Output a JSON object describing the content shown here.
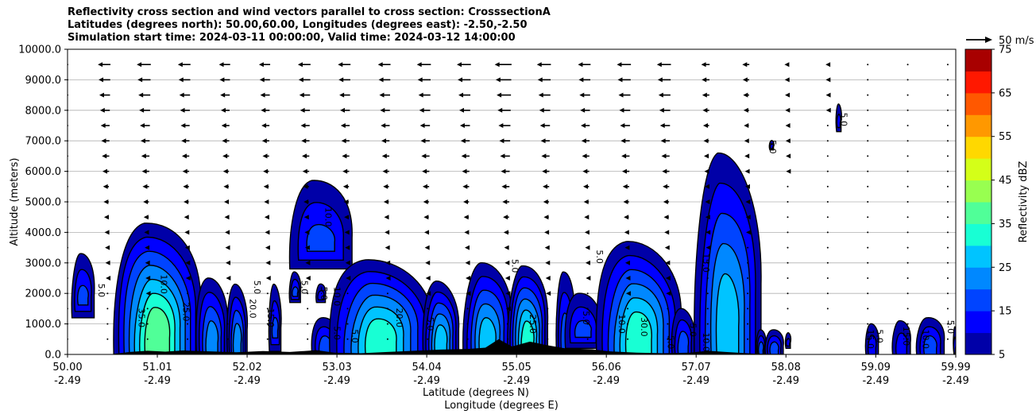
{
  "title": {
    "line1": "Reflectivity cross section and wind vectors parallel to cross section: CrosssectionA",
    "line2": "Latitudes (degrees north): 50.00,60.00, Longitudes (degrees east): -2.50,-2.50",
    "line3": "Simulation start time: 2024-03-11 00:00:00, Valid time: 2024-03-12 14:00:00"
  },
  "chart_data": {
    "type": "heatmap",
    "title": "Reflectivity cross section and wind vectors parallel to cross section: CrosssectionA",
    "xlabel": "Latitude (degrees N)",
    "xlabel2": "Longitude (degrees E)",
    "ylabel": "Altitude (meters)",
    "xlim": [
      50.0,
      59.99
    ],
    "ylim": [
      0,
      10000
    ],
    "x_ticks": [
      {
        "lat": "50.00",
        "lon": "-2.49",
        "value": 50.0
      },
      {
        "lat": "51.01",
        "lon": "-2.49",
        "value": 51.01
      },
      {
        "lat": "52.02",
        "lon": "-2.49",
        "value": 52.02
      },
      {
        "lat": "53.03",
        "lon": "-2.49",
        "value": 53.03
      },
      {
        "lat": "54.04",
        "lon": "-2.49",
        "value": 54.04
      },
      {
        "lat": "55.05",
        "lon": "-2.49",
        "value": 55.05
      },
      {
        "lat": "56.06",
        "lon": "-2.49",
        "value": 56.06
      },
      {
        "lat": "57.07",
        "lon": "-2.49",
        "value": 57.07
      },
      {
        "lat": "58.08",
        "lon": "-2.49",
        "value": 58.08
      },
      {
        "lat": "59.09",
        "lon": "-2.49",
        "value": 59.09
      },
      {
        "lat": "59.99",
        "lon": "-2.49",
        "value": 59.99
      }
    ],
    "y_ticks": [
      {
        "label": "0.0",
        "value": 0
      },
      {
        "label": "1000.0",
        "value": 1000
      },
      {
        "label": "2000.0",
        "value": 2000
      },
      {
        "label": "3000.0",
        "value": 3000
      },
      {
        "label": "4000.0",
        "value": 4000
      },
      {
        "label": "5000.0",
        "value": 5000
      },
      {
        "label": "6000.0",
        "value": 6000
      },
      {
        "label": "7000.0",
        "value": 7000
      },
      {
        "label": "8000.0",
        "value": 8000
      },
      {
        "label": "9000.0",
        "value": 9000
      },
      {
        "label": "10000.0",
        "value": 10000
      }
    ],
    "grid": "horizontal",
    "colorbar": {
      "label": "Reflectivity dBZ",
      "levels": [
        5,
        10,
        15,
        20,
        25,
        30,
        35,
        40,
        45,
        50,
        55,
        60,
        65,
        70,
        75
      ],
      "tick_labels": [
        "5",
        "15",
        "25",
        "35",
        "45",
        "55",
        "65",
        "75"
      ],
      "colors": [
        "#0000a8",
        "#0000ff",
        "#0044ff",
        "#0088ff",
        "#00c4ff",
        "#18ffd4",
        "#50ff98",
        "#98ff50",
        "#d4ff18",
        "#ffd800",
        "#ff9800",
        "#ff5800",
        "#ff1800",
        "#a80000"
      ]
    },
    "wind_key": {
      "label": "50 m/s",
      "speed": 50
    },
    "wind_columns": [
      {
        "lat": 50.0,
        "v10": 0
      },
      {
        "lat": 50.45,
        "v10": -18
      },
      {
        "lat": 50.9,
        "v10": -20
      },
      {
        "lat": 51.35,
        "v10": -18
      },
      {
        "lat": 51.8,
        "v10": -16
      },
      {
        "lat": 52.25,
        "v10": -16
      },
      {
        "lat": 52.7,
        "v10": -18
      },
      {
        "lat": 53.15,
        "v10": -18
      },
      {
        "lat": 53.6,
        "v10": -18
      },
      {
        "lat": 54.05,
        "v10": -20
      },
      {
        "lat": 54.5,
        "v10": -20
      },
      {
        "lat": 54.95,
        "v10": -24
      },
      {
        "lat": 55.4,
        "v10": -20
      },
      {
        "lat": 55.85,
        "v10": -18
      },
      {
        "lat": 56.3,
        "v10": -20
      },
      {
        "lat": 56.75,
        "v10": -20
      },
      {
        "lat": 57.2,
        "v10": -12
      },
      {
        "lat": 57.65,
        "v10": -10
      },
      {
        "lat": 58.1,
        "v10": -6
      },
      {
        "lat": 58.55,
        "v10": -4
      },
      {
        "lat": 59.0,
        "v10": 0
      },
      {
        "lat": 59.45,
        "v10": 0
      },
      {
        "lat": 59.9,
        "v10": 0
      }
    ],
    "echo_cells": [
      {
        "x0": 50.05,
        "x1": 50.3,
        "ybot": 1200,
        "ytop": 3300,
        "max_level": 2
      },
      {
        "x0": 50.52,
        "x1": 51.5,
        "ybot": 0,
        "ytop": 4300,
        "max_level": 6
      },
      {
        "x0": 51.45,
        "x1": 51.8,
        "ybot": 0,
        "ytop": 2500,
        "max_level": 3
      },
      {
        "x0": 51.8,
        "x1": 52.02,
        "ybot": 0,
        "ytop": 2300,
        "max_level": 3
      },
      {
        "x0": 52.27,
        "x1": 52.4,
        "ybot": 100,
        "ytop": 2300,
        "max_level": 2
      },
      {
        "x0": 52.5,
        "x1": 52.62,
        "ybot": 1700,
        "ytop": 2700,
        "max_level": 2
      },
      {
        "x0": 52.8,
        "x1": 52.9,
        "ybot": 1700,
        "ytop": 2300,
        "max_level": 1
      },
      {
        "x0": 52.5,
        "x1": 53.2,
        "ybot": 2800,
        "ytop": 5700,
        "max_level": 2
      },
      {
        "x0": 52.75,
        "x1": 53.05,
        "ybot": 0,
        "ytop": 1200,
        "max_level": 2
      },
      {
        "x0": 52.95,
        "x1": 54.1,
        "ybot": 0,
        "ytop": 3100,
        "max_level": 5
      },
      {
        "x0": 54.0,
        "x1": 54.4,
        "ybot": 0,
        "ytop": 2400,
        "max_level": 4
      },
      {
        "x0": 54.45,
        "x1": 55.0,
        "ybot": 0,
        "ytop": 3000,
        "max_level": 4
      },
      {
        "x0": 54.95,
        "x1": 55.4,
        "ybot": 0,
        "ytop": 2900,
        "max_level": 5
      },
      {
        "x0": 55.5,
        "x1": 55.7,
        "ybot": 0,
        "ytop": 2700,
        "max_level": 2
      },
      {
        "x0": 55.6,
        "x1": 56.0,
        "ybot": 200,
        "ytop": 2000,
        "max_level": 2
      },
      {
        "x0": 55.95,
        "x1": 56.9,
        "ybot": 0,
        "ytop": 3700,
        "max_level": 5
      },
      {
        "x0": 56.8,
        "x1": 57.05,
        "ybot": 0,
        "ytop": 1500,
        "max_level": 2
      },
      {
        "x0": 57.05,
        "x1": 57.8,
        "ybot": 0,
        "ytop": 6600,
        "max_level": 4
      },
      {
        "x0": 57.75,
        "x1": 57.85,
        "ybot": 0,
        "ytop": 800,
        "max_level": 2
      },
      {
        "x0": 57.85,
        "x1": 58.05,
        "ybot": 0,
        "ytop": 800,
        "max_level": 2
      },
      {
        "x0": 58.08,
        "x1": 58.13,
        "ybot": 200,
        "ytop": 700,
        "max_level": 1
      },
      {
        "x0": 58.65,
        "x1": 58.7,
        "ybot": 7300,
        "ytop": 8200,
        "max_level": 1
      },
      {
        "x0": 57.9,
        "x1": 57.94,
        "ybot": 6700,
        "ytop": 7000,
        "max_level": 1
      },
      {
        "x0": 58.98,
        "x1": 59.12,
        "ybot": 0,
        "ytop": 1000,
        "max_level": 1
      },
      {
        "x0": 59.28,
        "x1": 59.48,
        "ybot": 0,
        "ytop": 1100,
        "max_level": 1
      },
      {
        "x0": 59.55,
        "x1": 59.86,
        "ybot": 0,
        "ytop": 1200,
        "max_level": 2
      },
      {
        "x0": 59.97,
        "x1": 59.99,
        "ybot": 0,
        "ytop": 900,
        "max_level": 1
      }
    ],
    "contour_labels": [
      {
        "text": "5.0",
        "lat": 50.35,
        "alt": 2100
      },
      {
        "text": "5.0",
        "lat": 52.1,
        "alt": 2200
      },
      {
        "text": "5.0",
        "lat": 52.63,
        "alt": 2200
      },
      {
        "text": "5.0",
        "lat": 52.85,
        "alt": 2000
      },
      {
        "text": "5.0",
        "lat": 53.0,
        "alt": 700
      },
      {
        "text": "5.0",
        "lat": 53.2,
        "alt": 600
      },
      {
        "text": "5.0",
        "lat": 54.05,
        "alt": 1000
      },
      {
        "text": "5.0",
        "lat": 55.0,
        "alt": 2900
      },
      {
        "text": "5.0",
        "lat": 55.8,
        "alt": 1200
      },
      {
        "text": "5.0",
        "lat": 55.95,
        "alt": 3200
      },
      {
        "text": "5.0",
        "lat": 56.75,
        "alt": 400
      },
      {
        "text": "5.0",
        "lat": 57.0,
        "alt": 800
      },
      {
        "text": "5.0",
        "lat": 57.9,
        "alt": 6800
      },
      {
        "text": "5.0",
        "lat": 58.7,
        "alt": 7700
      },
      {
        "text": "5.0",
        "lat": 59.9,
        "alt": 900
      },
      {
        "text": "5.0",
        "lat": 59.1,
        "alt": 600
      },
      {
        "text": "10.0",
        "lat": 51.05,
        "alt": 2300
      },
      {
        "text": "10.0",
        "lat": 52.9,
        "alt": 4500
      },
      {
        "text": "10.0",
        "lat": 53.0,
        "alt": 1900
      },
      {
        "text": "10.0",
        "lat": 56.2,
        "alt": 1000
      },
      {
        "text": "10.0",
        "lat": 57.15,
        "alt": 400
      },
      {
        "text": "10.0",
        "lat": 59.62,
        "alt": 500
      },
      {
        "text": "15.0",
        "lat": 52.25,
        "alt": 1200
      },
      {
        "text": "15.0",
        "lat": 57.15,
        "alt": 3000
      },
      {
        "text": "15.0",
        "lat": 59.4,
        "alt": 600
      },
      {
        "text": "15.0",
        "lat": 59.0,
        "alt": 500
      },
      {
        "text": "20.0",
        "lat": 52.05,
        "alt": 1500
      },
      {
        "text": "20.0",
        "lat": 53.7,
        "alt": 1200
      },
      {
        "text": "25.0",
        "lat": 51.3,
        "alt": 1400
      },
      {
        "text": "25.0",
        "lat": 55.2,
        "alt": 1000
      },
      {
        "text": "30.0",
        "lat": 56.45,
        "alt": 900
      },
      {
        "text": "35.0",
        "lat": 50.8,
        "alt": 1200
      }
    ]
  }
}
